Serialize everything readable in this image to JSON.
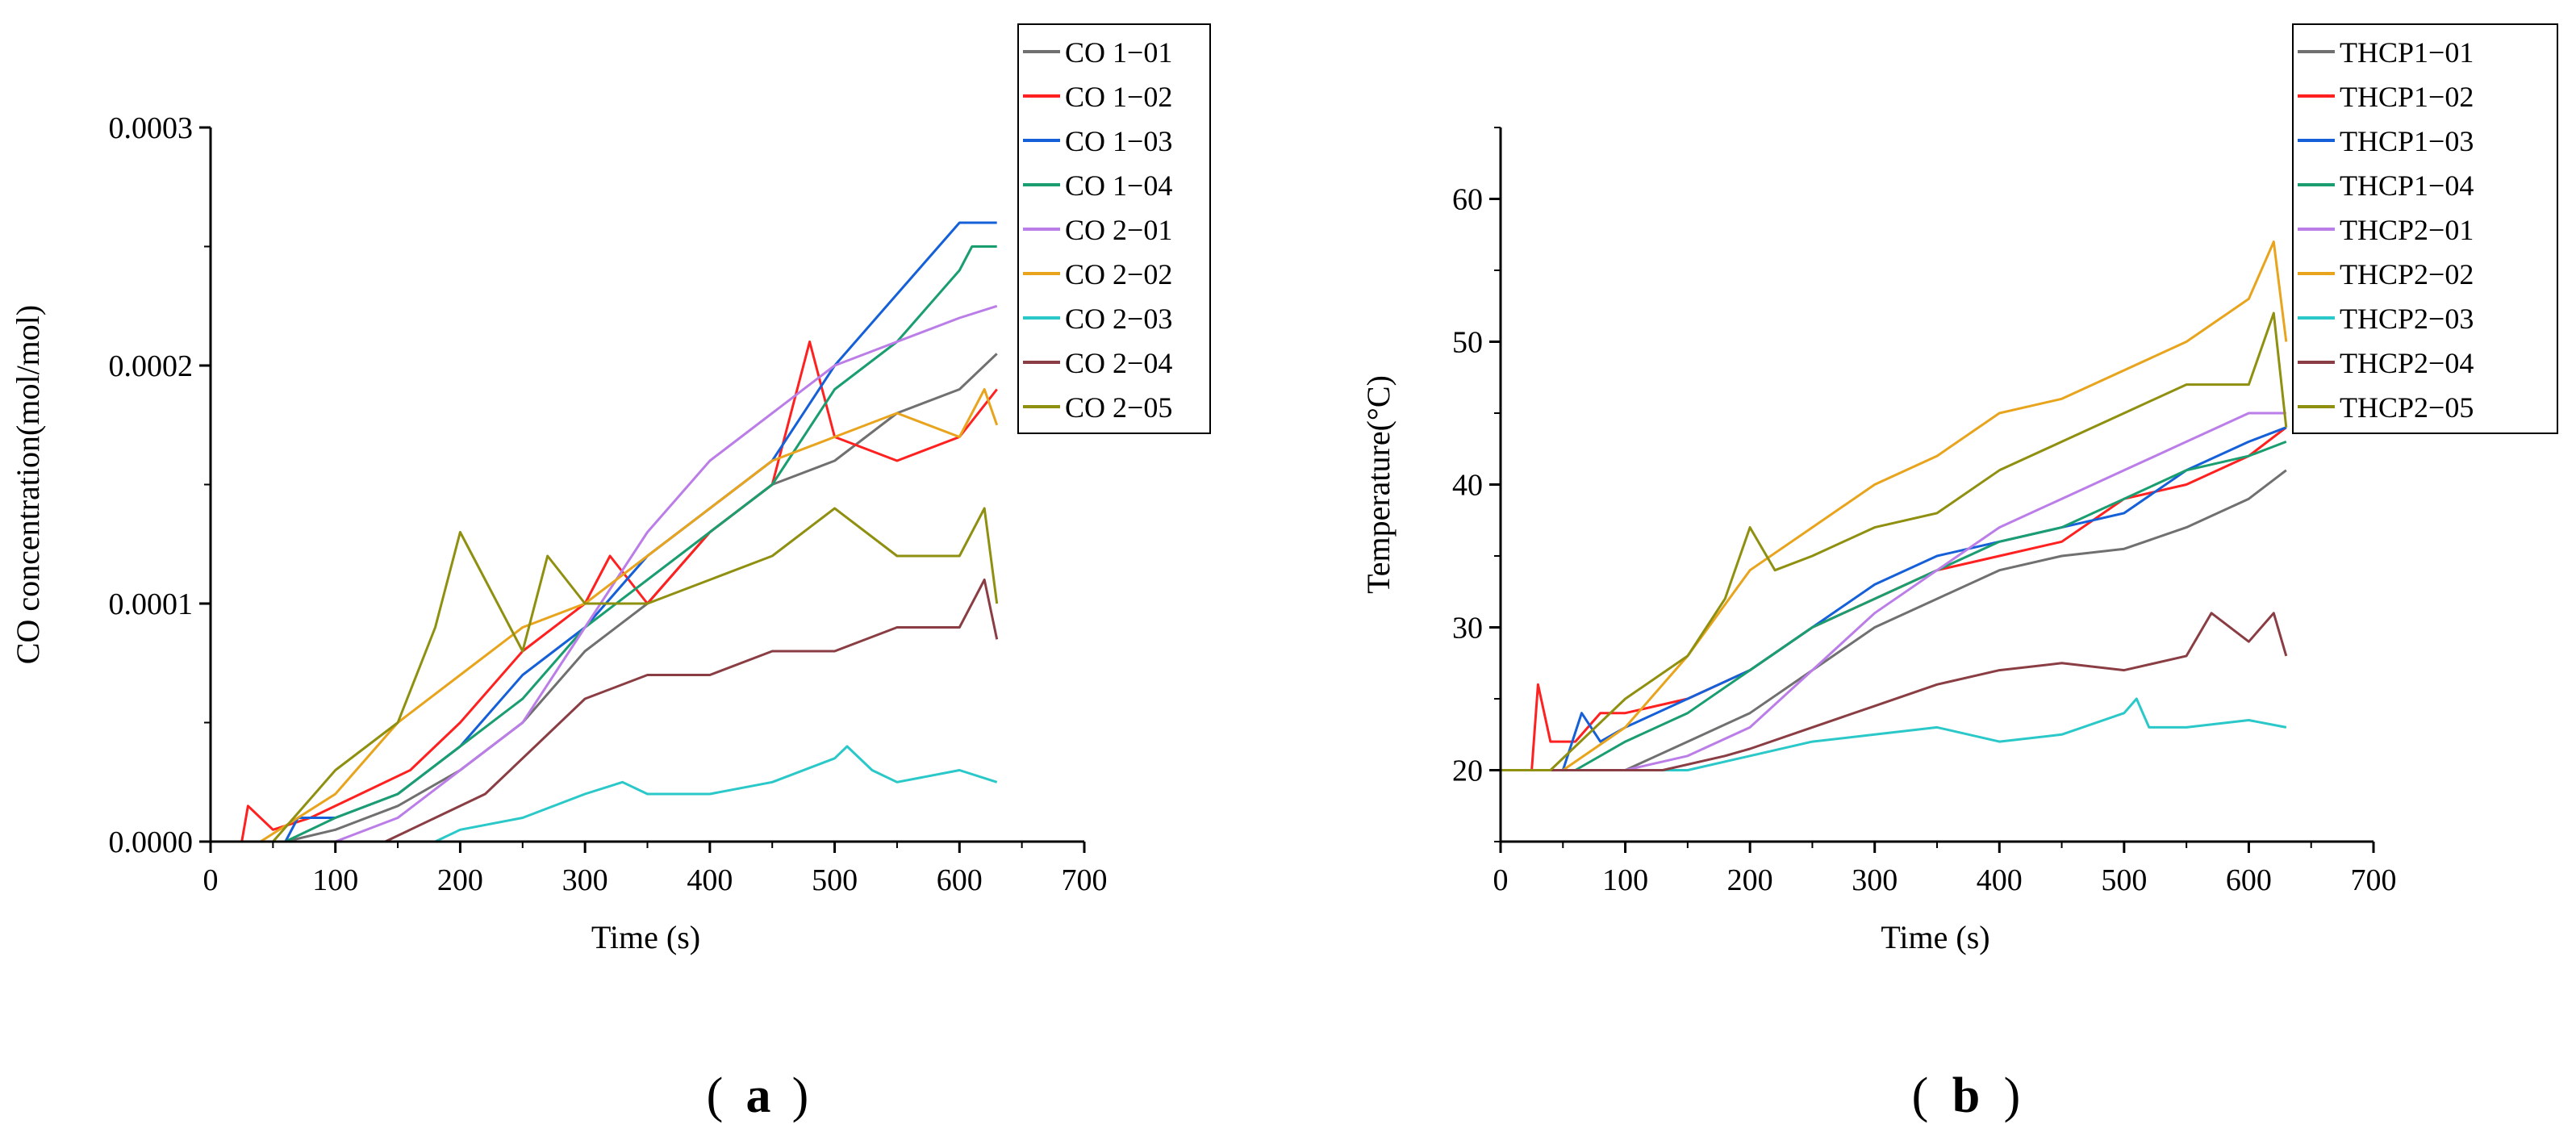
{
  "panels": [
    {
      "panel_label_text": "(a)",
      "panel_letter": "a",
      "chart_type": "line"
    },
    {
      "panel_label_text": "(b)",
      "panel_letter": "b",
      "chart_type": "line"
    }
  ],
  "chart_data": [
    {
      "type": "line",
      "title": "",
      "xlabel": "Time (s)",
      "ylabel": "CO concentration(mol/mol)",
      "xlim": [
        0,
        700
      ],
      "ylim": [
        0,
        0.0003
      ],
      "xticks": [
        0,
        100,
        200,
        300,
        400,
        500,
        600,
        700
      ],
      "xtick_labels": [
        "0",
        "100",
        "200",
        "300",
        "400",
        "500",
        "600",
        "700"
      ],
      "yticks": [
        0,
        0.0001,
        0.0002,
        0.0003
      ],
      "ytick_labels": [
        "0.0000",
        "0.0001",
        "0.0002",
        "0.0003"
      ],
      "legend_position": "top-right",
      "series": [
        {
          "name": "CO 1−01",
          "color": "#707070",
          "x": [
            0,
            60,
            100,
            150,
            200,
            250,
            300,
            350,
            400,
            450,
            500,
            550,
            600,
            630
          ],
          "values": [
            0,
            0,
            5e-06,
            1.5e-05,
            3e-05,
            5e-05,
            8e-05,
            0.0001,
            0.00013,
            0.00015,
            0.00016,
            0.00018,
            0.00019,
            0.000205
          ]
        },
        {
          "name": "CO 1−02",
          "color": "#ff2020",
          "x": [
            0,
            25,
            30,
            50,
            80,
            120,
            160,
            200,
            250,
            300,
            320,
            350,
            400,
            450,
            480,
            500,
            550,
            600,
            630
          ],
          "values": [
            0,
            0,
            1.5e-05,
            5e-06,
            1e-05,
            2e-05,
            3e-05,
            5e-05,
            8e-05,
            0.0001,
            0.00012,
            0.0001,
            0.00013,
            0.00015,
            0.00021,
            0.00017,
            0.00016,
            0.00017,
            0.00019
          ]
        },
        {
          "name": "CO 1−03",
          "color": "#1560d8",
          "x": [
            0,
            60,
            70,
            100,
            150,
            200,
            250,
            300,
            350,
            400,
            450,
            500,
            550,
            600,
            630
          ],
          "values": [
            0,
            0,
            1e-05,
            1e-05,
            2e-05,
            4e-05,
            7e-05,
            9e-05,
            0.00012,
            0.00014,
            0.00016,
            0.0002,
            0.00023,
            0.00026,
            0.00026
          ]
        },
        {
          "name": "CO 1−04",
          "color": "#1a9e70",
          "x": [
            0,
            60,
            100,
            150,
            200,
            250,
            300,
            350,
            400,
            450,
            500,
            550,
            600,
            610,
            630
          ],
          "values": [
            0,
            0,
            1e-05,
            2e-05,
            4e-05,
            6e-05,
            9e-05,
            0.00011,
            0.00013,
            0.00015,
            0.00019,
            0.00021,
            0.00024,
            0.00025,
            0.00025
          ]
        },
        {
          "name": "CO 2−01",
          "color": "#bb7ee8",
          "x": [
            0,
            100,
            150,
            200,
            250,
            300,
            350,
            400,
            450,
            500,
            550,
            600,
            630
          ],
          "values": [
            0,
            0,
            1e-05,
            3e-05,
            5e-05,
            9e-05,
            0.00013,
            0.00016,
            0.00018,
            0.0002,
            0.00021,
            0.00022,
            0.000225
          ]
        },
        {
          "name": "CO 2−02",
          "color": "#e8a41c",
          "x": [
            0,
            40,
            100,
            150,
            200,
            250,
            300,
            350,
            400,
            450,
            500,
            550,
            600,
            620,
            630
          ],
          "values": [
            0,
            0,
            2e-05,
            5e-05,
            7e-05,
            9e-05,
            0.0001,
            0.00012,
            0.00014,
            0.00016,
            0.00017,
            0.00018,
            0.00017,
            0.00019,
            0.000175
          ]
        },
        {
          "name": "CO 2−03",
          "color": "#2ac8c8",
          "x": [
            0,
            180,
            200,
            250,
            300,
            330,
            350,
            400,
            450,
            500,
            510,
            530,
            550,
            600,
            630
          ],
          "values": [
            0,
            0,
            5e-06,
            1e-05,
            2e-05,
            2.5e-05,
            2e-05,
            2e-05,
            2.5e-05,
            3.5e-05,
            4e-05,
            3e-05,
            2.5e-05,
            3e-05,
            2.5e-05
          ]
        },
        {
          "name": "CO 2−04",
          "color": "#8a3e44",
          "x": [
            0,
            140,
            180,
            220,
            260,
            300,
            350,
            400,
            450,
            500,
            550,
            600,
            620,
            630
          ],
          "values": [
            0,
            0,
            1e-05,
            2e-05,
            4e-05,
            6e-05,
            7e-05,
            7e-05,
            8e-05,
            8e-05,
            9e-05,
            9e-05,
            0.00011,
            8.5e-05
          ]
        },
        {
          "name": "CO 2−05",
          "color": "#8f8f10",
          "x": [
            0,
            50,
            100,
            150,
            180,
            200,
            220,
            250,
            270,
            300,
            350,
            400,
            450,
            500,
            550,
            600,
            620,
            630
          ],
          "values": [
            0,
            0,
            3e-05,
            5e-05,
            9e-05,
            0.00013,
            0.00011,
            8e-05,
            0.00012,
            0.0001,
            0.0001,
            0.00011,
            0.00012,
            0.00014,
            0.00012,
            0.00012,
            0.00014,
            0.0001
          ]
        }
      ]
    },
    {
      "type": "line",
      "title": "",
      "xlabel": "Time (s)",
      "ylabel": "Temperature(°C)",
      "xlim": [
        0,
        700
      ],
      "ylim": [
        15,
        65
      ],
      "xticks": [
        0,
        100,
        200,
        300,
        400,
        500,
        600,
        700
      ],
      "xtick_labels": [
        "0",
        "100",
        "200",
        "300",
        "400",
        "500",
        "600",
        "700"
      ],
      "yticks": [
        20,
        30,
        40,
        50,
        60
      ],
      "ytick_labels": [
        "20",
        "30",
        "40",
        "50",
        "60"
      ],
      "legend_position": "top-right",
      "series": [
        {
          "name": "THCP1−01",
          "color": "#707070",
          "x": [
            0,
            100,
            150,
            200,
            250,
            300,
            350,
            400,
            450,
            500,
            550,
            600,
            630
          ],
          "values": [
            20,
            20,
            22,
            24,
            27,
            30,
            32,
            34,
            35,
            35.5,
            37,
            39,
            41
          ]
        },
        {
          "name": "THCP1−02",
          "color": "#ff2020",
          "x": [
            0,
            25,
            30,
            40,
            60,
            80,
            100,
            150,
            200,
            250,
            300,
            350,
            400,
            450,
            500,
            550,
            600,
            630
          ],
          "values": [
            20,
            20,
            26,
            22,
            22,
            24,
            24,
            25,
            27,
            30,
            32,
            34,
            35,
            36,
            39,
            40,
            42,
            44
          ]
        },
        {
          "name": "THCP1−03",
          "color": "#1560d8",
          "x": [
            0,
            50,
            65,
            80,
            100,
            150,
            200,
            250,
            300,
            350,
            400,
            450,
            500,
            550,
            600,
            630
          ],
          "values": [
            20,
            20,
            24,
            22,
            23,
            25,
            27,
            30,
            33,
            35,
            36,
            37,
            38,
            41,
            43,
            44
          ]
        },
        {
          "name": "THCP1−04",
          "color": "#1a9e70",
          "x": [
            0,
            60,
            100,
            150,
            200,
            250,
            300,
            350,
            400,
            450,
            500,
            550,
            600,
            630
          ],
          "values": [
            20,
            20,
            22,
            24,
            27,
            30,
            32,
            34,
            36,
            37,
            39,
            41,
            42,
            43
          ]
        },
        {
          "name": "THCP2−01",
          "color": "#bb7ee8",
          "x": [
            0,
            100,
            150,
            200,
            250,
            300,
            350,
            400,
            450,
            500,
            550,
            600,
            630
          ],
          "values": [
            20,
            20,
            21,
            23,
            27,
            31,
            34,
            37,
            39,
            41,
            43,
            45,
            45
          ]
        },
        {
          "name": "THCP2−02",
          "color": "#e8a41c",
          "x": [
            0,
            50,
            100,
            150,
            200,
            250,
            300,
            350,
            400,
            450,
            500,
            550,
            600,
            620,
            630
          ],
          "values": [
            20,
            20,
            23,
            28,
            34,
            37,
            40,
            42,
            45,
            46,
            48,
            50,
            53,
            57,
            50
          ]
        },
        {
          "name": "THCP2−03",
          "color": "#2ac8c8",
          "x": [
            0,
            150,
            200,
            250,
            300,
            350,
            400,
            450,
            500,
            510,
            520,
            550,
            600,
            630
          ],
          "values": [
            20,
            20,
            21,
            22,
            22.5,
            23,
            22,
            22.5,
            24,
            25,
            23,
            23,
            23.5,
            23
          ]
        },
        {
          "name": "THCP2−04",
          "color": "#8a3e44",
          "x": [
            0,
            130,
            180,
            200,
            250,
            300,
            350,
            400,
            450,
            500,
            550,
            570,
            600,
            620,
            630
          ],
          "values": [
            20,
            20,
            21,
            21.5,
            23,
            24.5,
            26,
            27,
            27.5,
            27,
            28,
            31,
            29,
            31,
            28
          ]
        },
        {
          "name": "THCP2−05",
          "color": "#8f8f10",
          "x": [
            0,
            40,
            100,
            150,
            180,
            200,
            220,
            250,
            300,
            350,
            400,
            450,
            500,
            550,
            600,
            620,
            630
          ],
          "values": [
            20,
            20,
            25,
            28,
            32,
            37,
            34,
            35,
            37,
            38,
            41,
            43,
            45,
            47,
            47,
            52,
            44
          ]
        }
      ]
    }
  ]
}
